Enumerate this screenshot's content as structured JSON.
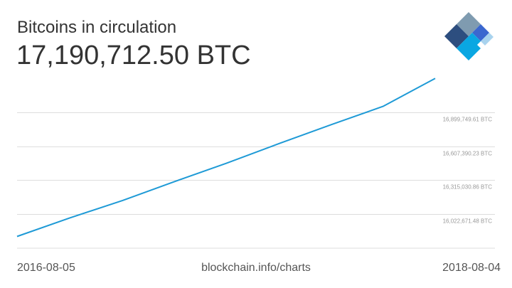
{
  "header": {
    "title": "Bitcoins in circulation",
    "value": "17,190,712.50 BTC"
  },
  "logo": {
    "icon": "blockchain-diamond-logo",
    "colors": [
      "#7f9bb0",
      "#2d4e7f",
      "#3b67cf",
      "#0aa7e2",
      "#a9d3ee"
    ]
  },
  "footer": {
    "start_date": "2016-08-05",
    "source": "blockchain.info/charts",
    "end_date": "2018-08-04"
  },
  "chart_data": {
    "type": "line",
    "title": "Bitcoins in circulation",
    "xlabel": "",
    "ylabel": "",
    "x": [
      "2016-08-05",
      "2016-11-05",
      "2017-02-05",
      "2017-05-05",
      "2017-08-05",
      "2017-11-05",
      "2018-02-05",
      "2018-05-05",
      "2018-08-04"
    ],
    "y": [
      15831500,
      15990800,
      16140500,
      16300300,
      16460500,
      16630400,
      16795000,
      16950000,
      17190712.5
    ],
    "y_ticks": [
      16022671.48,
      16315030.86,
      16607390.23,
      16899749.61
    ],
    "y_tick_labels": [
      "16,022,671.48 BTC",
      "16,315,030.86 BTC",
      "16,607,390.23 BTC",
      "16,899,749.61 BTC"
    ],
    "ylim": [
      15730312.1,
      17192108.99
    ],
    "grid": true,
    "line_color": "#1e9ad6",
    "grid_color": "#dddddd",
    "legend": "none"
  }
}
